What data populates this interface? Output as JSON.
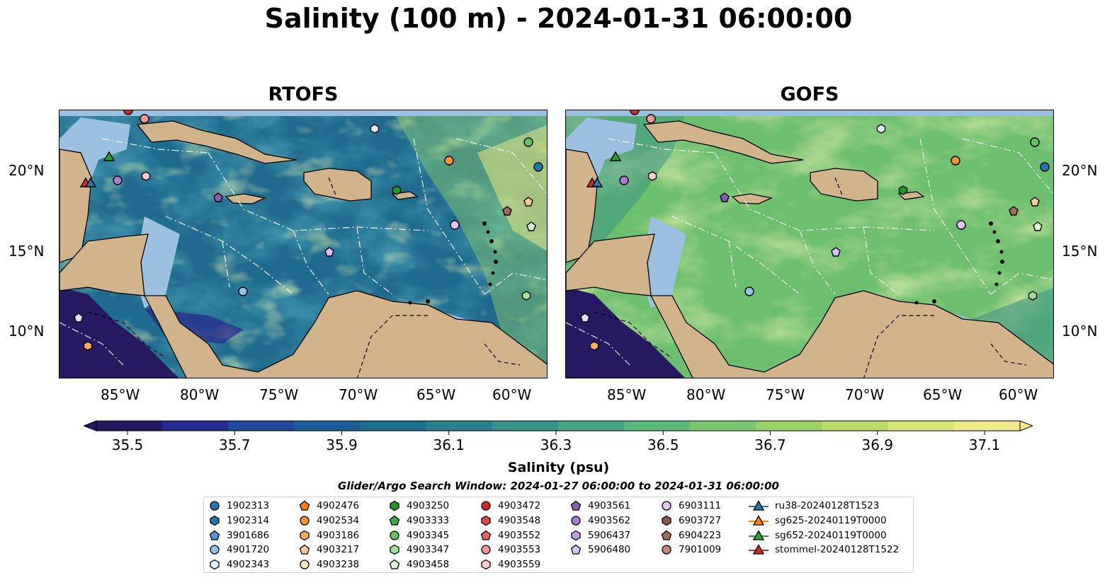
{
  "title": "Salinity (100 m) - 2024-01-31 06:00:00",
  "panels": [
    {
      "name": "RTOFS"
    },
    {
      "name": "GOFS"
    }
  ],
  "axes": {
    "lon_ticks": [
      "85°W",
      "80°W",
      "75°W",
      "70°W",
      "65°W",
      "60°W"
    ],
    "lat_ticks": [
      "20°N",
      "15°N",
      "10°N"
    ]
  },
  "colorbar": {
    "label": "Salinity (psu)",
    "ticks": [
      "35.5",
      "35.7",
      "35.9",
      "36.1",
      "36.3",
      "36.5",
      "36.7",
      "36.9",
      "37.1"
    ],
    "colors": [
      "#25185e",
      "#252a93",
      "#1f4a9b",
      "#1a5e97",
      "#1d6e90",
      "#2b7f8c",
      "#38918a",
      "#47a386",
      "#5db87b",
      "#79c76e",
      "#99d368",
      "#b8dd6c",
      "#d7e57a",
      "#f2e98b"
    ]
  },
  "search_window": "Glider/Argo Search Window: 2024-01-27 06:00:00 to 2024-01-31 06:00:00",
  "legend": {
    "columns": [
      [
        {
          "label": "1902313",
          "shape": "circle",
          "color": "#1f77b4"
        },
        {
          "label": "1902314",
          "shape": "hexagon",
          "color": "#1f77b4"
        },
        {
          "label": "3901686",
          "shape": "pentagon",
          "color": "#4f97d6"
        },
        {
          "label": "4901720",
          "shape": "circle",
          "color": "#8ec5ea"
        },
        {
          "label": "4902343",
          "shape": "hexagon",
          "color": "#dbeefb"
        }
      ],
      [
        {
          "label": "4902476",
          "shape": "pentagon",
          "color": "#f57f0e"
        },
        {
          "label": "4902534",
          "shape": "circle",
          "color": "#f89130"
        },
        {
          "label": "4903186",
          "shape": "hexagon",
          "color": "#fbad61"
        },
        {
          "label": "4903217",
          "shape": "pentagon",
          "color": "#fdca95"
        },
        {
          "label": "4903238",
          "shape": "circle",
          "color": "#fee7cb"
        }
      ],
      [
        {
          "label": "4903250",
          "shape": "hexagon",
          "color": "#1e9b2c"
        },
        {
          "label": "4903333",
          "shape": "pentagon",
          "color": "#38ab3d"
        },
        {
          "label": "4903345",
          "shape": "circle",
          "color": "#63c35f"
        },
        {
          "label": "4903347",
          "shape": "hexagon",
          "color": "#9ee29a"
        },
        {
          "label": "4903458",
          "shape": "pentagon",
          "color": "#d6f7cf"
        }
      ],
      [
        {
          "label": "4903472",
          "shape": "circle",
          "color": "#d62728"
        },
        {
          "label": "4903548",
          "shape": "hexagon",
          "color": "#e04747"
        },
        {
          "label": "4903552",
          "shape": "pentagon",
          "color": "#ea6464"
        },
        {
          "label": "4903553",
          "shape": "circle",
          "color": "#f29494"
        },
        {
          "label": "4903559",
          "shape": "hexagon",
          "color": "#fbcccc"
        }
      ],
      [
        {
          "label": "4903561",
          "shape": "pentagon",
          "color": "#8a5db5"
        },
        {
          "label": "4903562",
          "shape": "circle",
          "color": "#a67ed0"
        },
        {
          "label": "5906437",
          "shape": "hexagon",
          "color": "#bf9ee4"
        },
        {
          "label": "5906480",
          "shape": "pentagon",
          "color": "#d8c2f3"
        }
      ],
      [
        {
          "label": "6903111",
          "shape": "circle",
          "color": "#e6c5f2"
        },
        {
          "label": "6903727",
          "shape": "hexagon",
          "color": "#8c564b"
        },
        {
          "label": "6904223",
          "shape": "pentagon",
          "color": "#a76a5a"
        },
        {
          "label": "7901009",
          "shape": "circle",
          "color": "#c2887a"
        }
      ],
      [
        {
          "label": "ru38-20240128T1523",
          "shape": "triangle-line",
          "color": "#1f77b4"
        },
        {
          "label": "sg625-20240119T0000",
          "shape": "triangle-line",
          "color": "#ff7f0e"
        },
        {
          "label": "sg652-20240119T0000",
          "shape": "triangle-line",
          "color": "#2ca02c"
        },
        {
          "label": "stommel-20240128T1522",
          "shape": "triangle-line",
          "color": "#d62728"
        }
      ]
    ]
  }
}
